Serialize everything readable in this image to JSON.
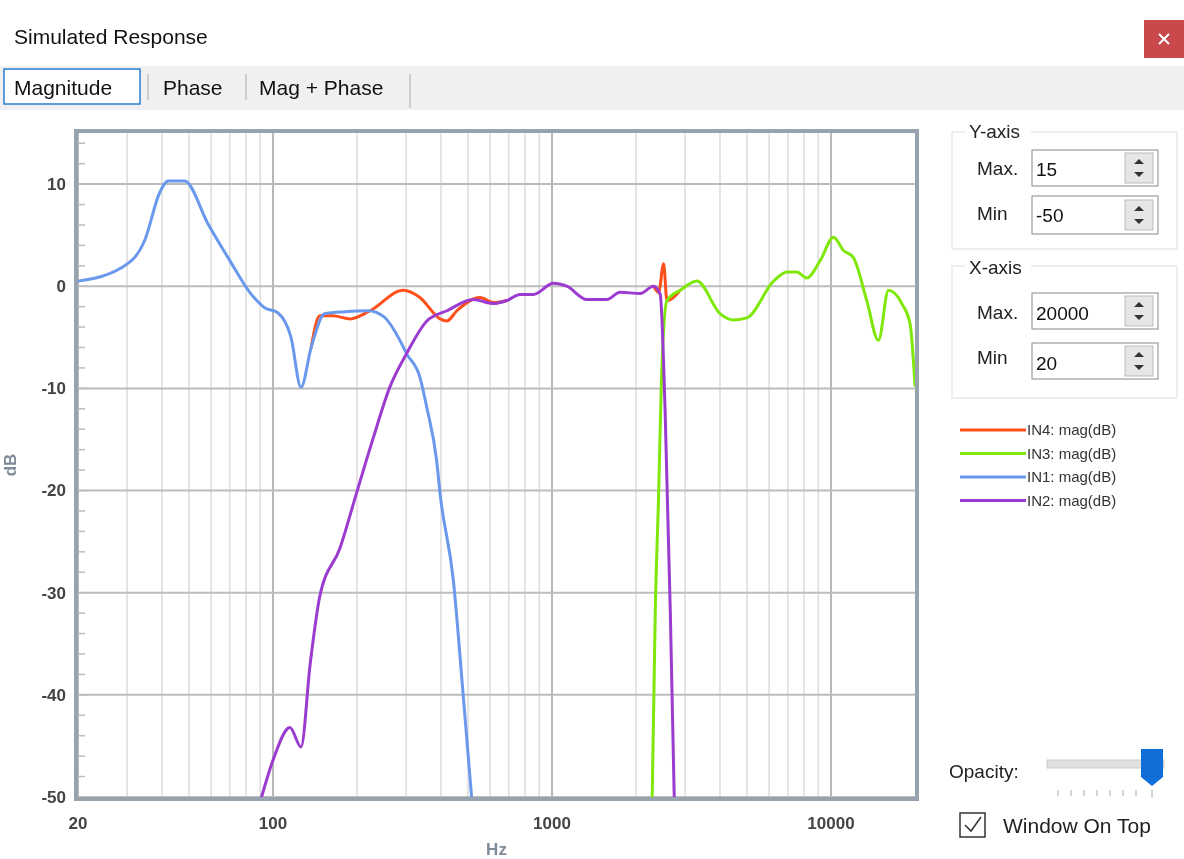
{
  "chart_data": {
    "type": "line",
    "title": "Simulated Response",
    "xlabel": "Hz",
    "ylabel": "dB",
    "annotations": [
      "Magnitude",
      "Phase",
      "Mag + Phase",
      "Y-axis",
      "Max.",
      "Min",
      "X-axis",
      "Max.",
      "Min",
      "Opacity:",
      "Window On Top",
      "15",
      "-50",
      "20000",
      "20"
    ],
    "log": "x",
    "grid": true,
    "legend": "right",
    "line_style": "solid",
    "marker": "none",
    "xlim": [
      20,
      20000
    ],
    "ylim": [
      -50,
      15
    ],
    "xticks": [
      20,
      {
        "value": 30,
        "label": null
      },
      {
        "value": 40,
        "label": null
      },
      {
        "value": 50,
        "label": null
      },
      {
        "value": 60,
        "label": null
      },
      {
        "value": 70,
        "label": null
      },
      {
        "value": 80,
        "label": null
      },
      {
        "value": 90,
        "label": null
      },
      100,
      {
        "value": 200,
        "label": null
      },
      {
        "value": 300,
        "label": null
      },
      {
        "value": 400,
        "label": null
      },
      {
        "value": 500,
        "label": null
      },
      {
        "value": 600,
        "label": null
      },
      {
        "value": 700,
        "label": null
      },
      {
        "value": 800,
        "label": null
      },
      {
        "value": 900,
        "label": null
      },
      1000,
      {
        "value": 2000,
        "label": null
      },
      {
        "value": 3000,
        "label": null
      },
      {
        "value": 4000,
        "label": null
      },
      {
        "value": 5000,
        "label": null
      },
      {
        "value": 6000,
        "label": null
      },
      {
        "value": 7000,
        "label": null
      },
      {
        "value": 8000,
        "label": null
      },
      {
        "value": 9000,
        "label": null
      },
      10000
    ],
    "yticks": [
      -50,
      {
        "value": -48,
        "label": null
      },
      {
        "value": -46,
        "label": null
      },
      {
        "value": -44,
        "label": null
      },
      {
        "value": -42,
        "label": null
      },
      -40,
      {
        "value": -38,
        "label": null
      },
      {
        "value": -36,
        "label": null
      },
      {
        "value": -34,
        "label": null
      },
      {
        "value": -32,
        "label": null
      },
      -30,
      {
        "value": -28,
        "label": null
      },
      {
        "value": -26,
        "label": null
      },
      {
        "value": -24,
        "label": null
      },
      {
        "value": -22,
        "label": null
      },
      -20,
      {
        "value": -18,
        "label": null
      },
      {
        "value": -16,
        "label": null
      },
      {
        "value": -14,
        "label": null
      },
      {
        "value": -12,
        "label": null
      },
      -10,
      {
        "value": -8,
        "label": null
      },
      {
        "value": -6,
        "label": null
      },
      {
        "value": -4,
        "label": null
      },
      {
        "value": -2,
        "label": null
      },
      0,
      {
        "value": 2,
        "label": null
      },
      {
        "value": 4,
        "label": null
      },
      {
        "value": 6,
        "label": null
      },
      {
        "value": 8,
        "label": null
      },
      10,
      {
        "value": 12,
        "label": null
      },
      {
        "value": 14,
        "label": null
      }
    ],
    "series": [
      {
        "name": "IN4: mag(dB)",
        "color": "#ff4f1a",
        "x": [
          137,
          147,
          164,
          189,
          223,
          293,
          336,
          397,
          420,
          456,
          552,
          617,
          689,
          null,
          2312,
          2411,
          2512,
          2582,
          2880
        ],
        "values": [
          -6.0,
          -2.9,
          -2.9,
          -3.2,
          -2.4,
          -0.4,
          -1.1,
          -3.2,
          -3.4,
          -2.4,
          -1.1,
          -1.6,
          -1.4,
          null,
          0,
          -0.6,
          2.2,
          -1.4,
          -0.4
        ]
      },
      {
        "name": "IN3: mag(dB)",
        "color": "#7fe80a",
        "x": [
          2286,
          2344,
          2411,
          2467,
          2582,
          2880,
          3305,
          4008,
          4477,
          4993,
          6223,
          6950,
          7540,
          8187,
          9143,
          10210,
          11090,
          12030,
          13430,
          14790,
          16070,
          17940,
          19200,
          20000
        ],
        "values": [
          -50,
          -32,
          -20.3,
          -9.2,
          -1.4,
          -0.4,
          0.5,
          -2.7,
          -3.3,
          -3.1,
          0.5,
          1.4,
          1.4,
          0.8,
          2.5,
          4.8,
          3.5,
          2.8,
          -1.4,
          -5.3,
          -0.4,
          -1.7,
          -3.7,
          -9.7
        ]
      },
      {
        "name": "IN1: mag(dB)",
        "color": "#6a98ec",
        "x": [
          20,
          28.6,
          34.7,
          39.3,
          42.1,
          48.2,
          58.5,
          69,
          83.6,
          93.3,
          104,
          116,
          126,
          137,
          153,
          181,
          219,
          250,
          285,
          301,
          336,
          356,
          386,
          397,
          443,
          481,
          515
        ],
        "values": [
          0.5,
          1.8,
          4.5,
          9.2,
          10.3,
          10.3,
          6.1,
          2.8,
          -0.8,
          -2.1,
          -2.6,
          -5.0,
          -9.9,
          -6.0,
          -2.7,
          -2.5,
          -2.4,
          -3.0,
          -5.3,
          -6.6,
          -8.9,
          -11.9,
          -17.1,
          -20.3,
          -28.8,
          -40.2,
          -50
        ]
      },
      {
        "name": "IN2: mag(dB)",
        "color": "#9b3bcf",
        "x": [
          91,
          100,
          115,
          126,
          136,
          147,
          174,
          199,
          229,
          262,
          301,
          356,
          420,
          522,
          617,
          689,
          768,
          857,
          1012,
          1130,
          1333,
          1571,
          1754,
          2070,
          2312,
          2442,
          2545,
          2655,
          2742
        ],
        "values": [
          -50,
          -46.4,
          -43.2,
          -45.1,
          -36.9,
          -30.4,
          -25.6,
          -20.3,
          -14.8,
          -9.9,
          -6.6,
          -3.4,
          -2.4,
          -1.3,
          -1.7,
          -1.4,
          -0.8,
          -0.8,
          0.3,
          0,
          -1.3,
          -1.3,
          -0.6,
          -0.7,
          0,
          -0.8,
          -12.5,
          -32,
          -50
        ]
      }
    ]
  }
}
